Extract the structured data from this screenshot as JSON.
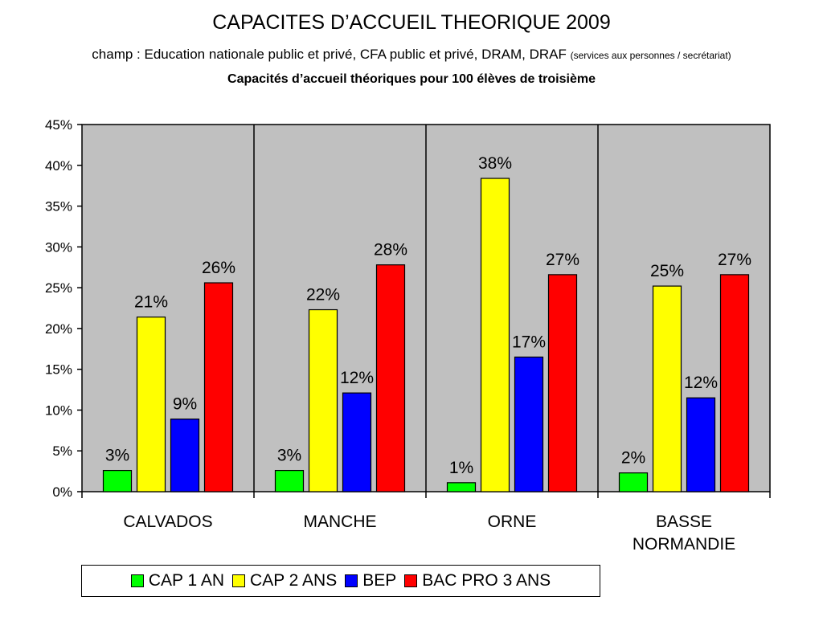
{
  "header": {
    "title": "CAPACITES D’ACCUEIL THEORIQUE 2009",
    "subtitle_main": "champ : Education nationale public et privé, CFA public et privé, DRAM, DRAF",
    "subtitle_small": "(services aux personnes / secrétariat)",
    "heading": "Capacités d’accueil théoriques pour 100 élèves de troisième"
  },
  "chart_data": {
    "type": "bar",
    "title": "Capacités d’accueil théoriques pour 100 élèves de troisième",
    "categories": [
      "CALVADOS",
      "MANCHE",
      "ORNE",
      "BASSE NORMANDIE"
    ],
    "category_lines": [
      [
        "CALVADOS"
      ],
      [
        "MANCHE"
      ],
      [
        "ORNE"
      ],
      [
        "BASSE",
        "NORMANDIE"
      ]
    ],
    "ylim": [
      0,
      45
    ],
    "yticks": [
      0,
      5,
      10,
      15,
      20,
      25,
      30,
      35,
      40,
      45
    ],
    "ytick_labels": [
      "0%",
      "5%",
      "10%",
      "15%",
      "20%",
      "25%",
      "30%",
      "35%",
      "40%",
      "45%"
    ],
    "grid": false,
    "plot_background": "#c0c0c0",
    "legend_position": "bottom",
    "series": [
      {
        "name": "CAP 1 AN",
        "color": "#00ff00",
        "values": [
          2.6,
          2.6,
          1.1,
          2.3
        ],
        "labels": [
          "3%",
          "3%",
          "1%",
          "2%"
        ]
      },
      {
        "name": "CAP 2 ANS",
        "color": "#ffff00",
        "values": [
          21.4,
          22.3,
          38.4,
          25.2
        ],
        "labels": [
          "21%",
          "22%",
          "38%",
          "25%"
        ]
      },
      {
        "name": "BEP",
        "color": "#0000ff",
        "values": [
          8.9,
          12.1,
          16.5,
          11.5
        ],
        "labels": [
          "9%",
          "12%",
          "17%",
          "12%"
        ]
      },
      {
        "name": "BAC PRO 3 ANS",
        "color": "#ff0000",
        "values": [
          25.6,
          27.8,
          26.6,
          26.6
        ],
        "labels": [
          "26%",
          "28%",
          "27%",
          "27%"
        ]
      }
    ]
  }
}
